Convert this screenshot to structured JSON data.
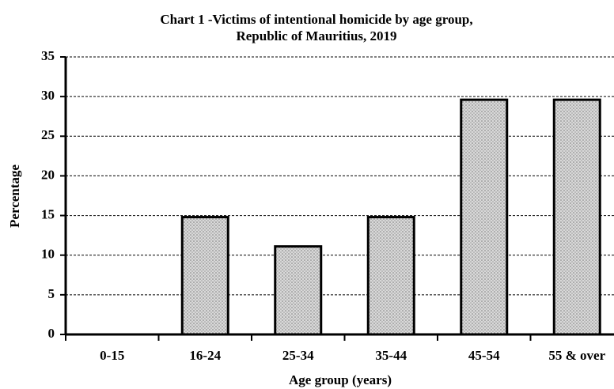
{
  "chart_data": {
    "type": "bar",
    "title": [
      "Chart 1 -Victims of intentional homicide  by age  group,",
      "Republic of Mauritius, 2019"
    ],
    "x_label": "Age group (years)",
    "y_label": "Percentage",
    "categories": [
      "0-15",
      "16-24",
      "25-34",
      "35-44",
      "45-54",
      "55 & over"
    ],
    "values": [
      0,
      14.8,
      11.1,
      14.8,
      29.6,
      29.6
    ],
    "color": "#c8c8c8",
    "ylim": [
      0,
      35
    ],
    "yticks": [
      0,
      5,
      10,
      15,
      20,
      25,
      30,
      35
    ],
    "grid": true
  }
}
